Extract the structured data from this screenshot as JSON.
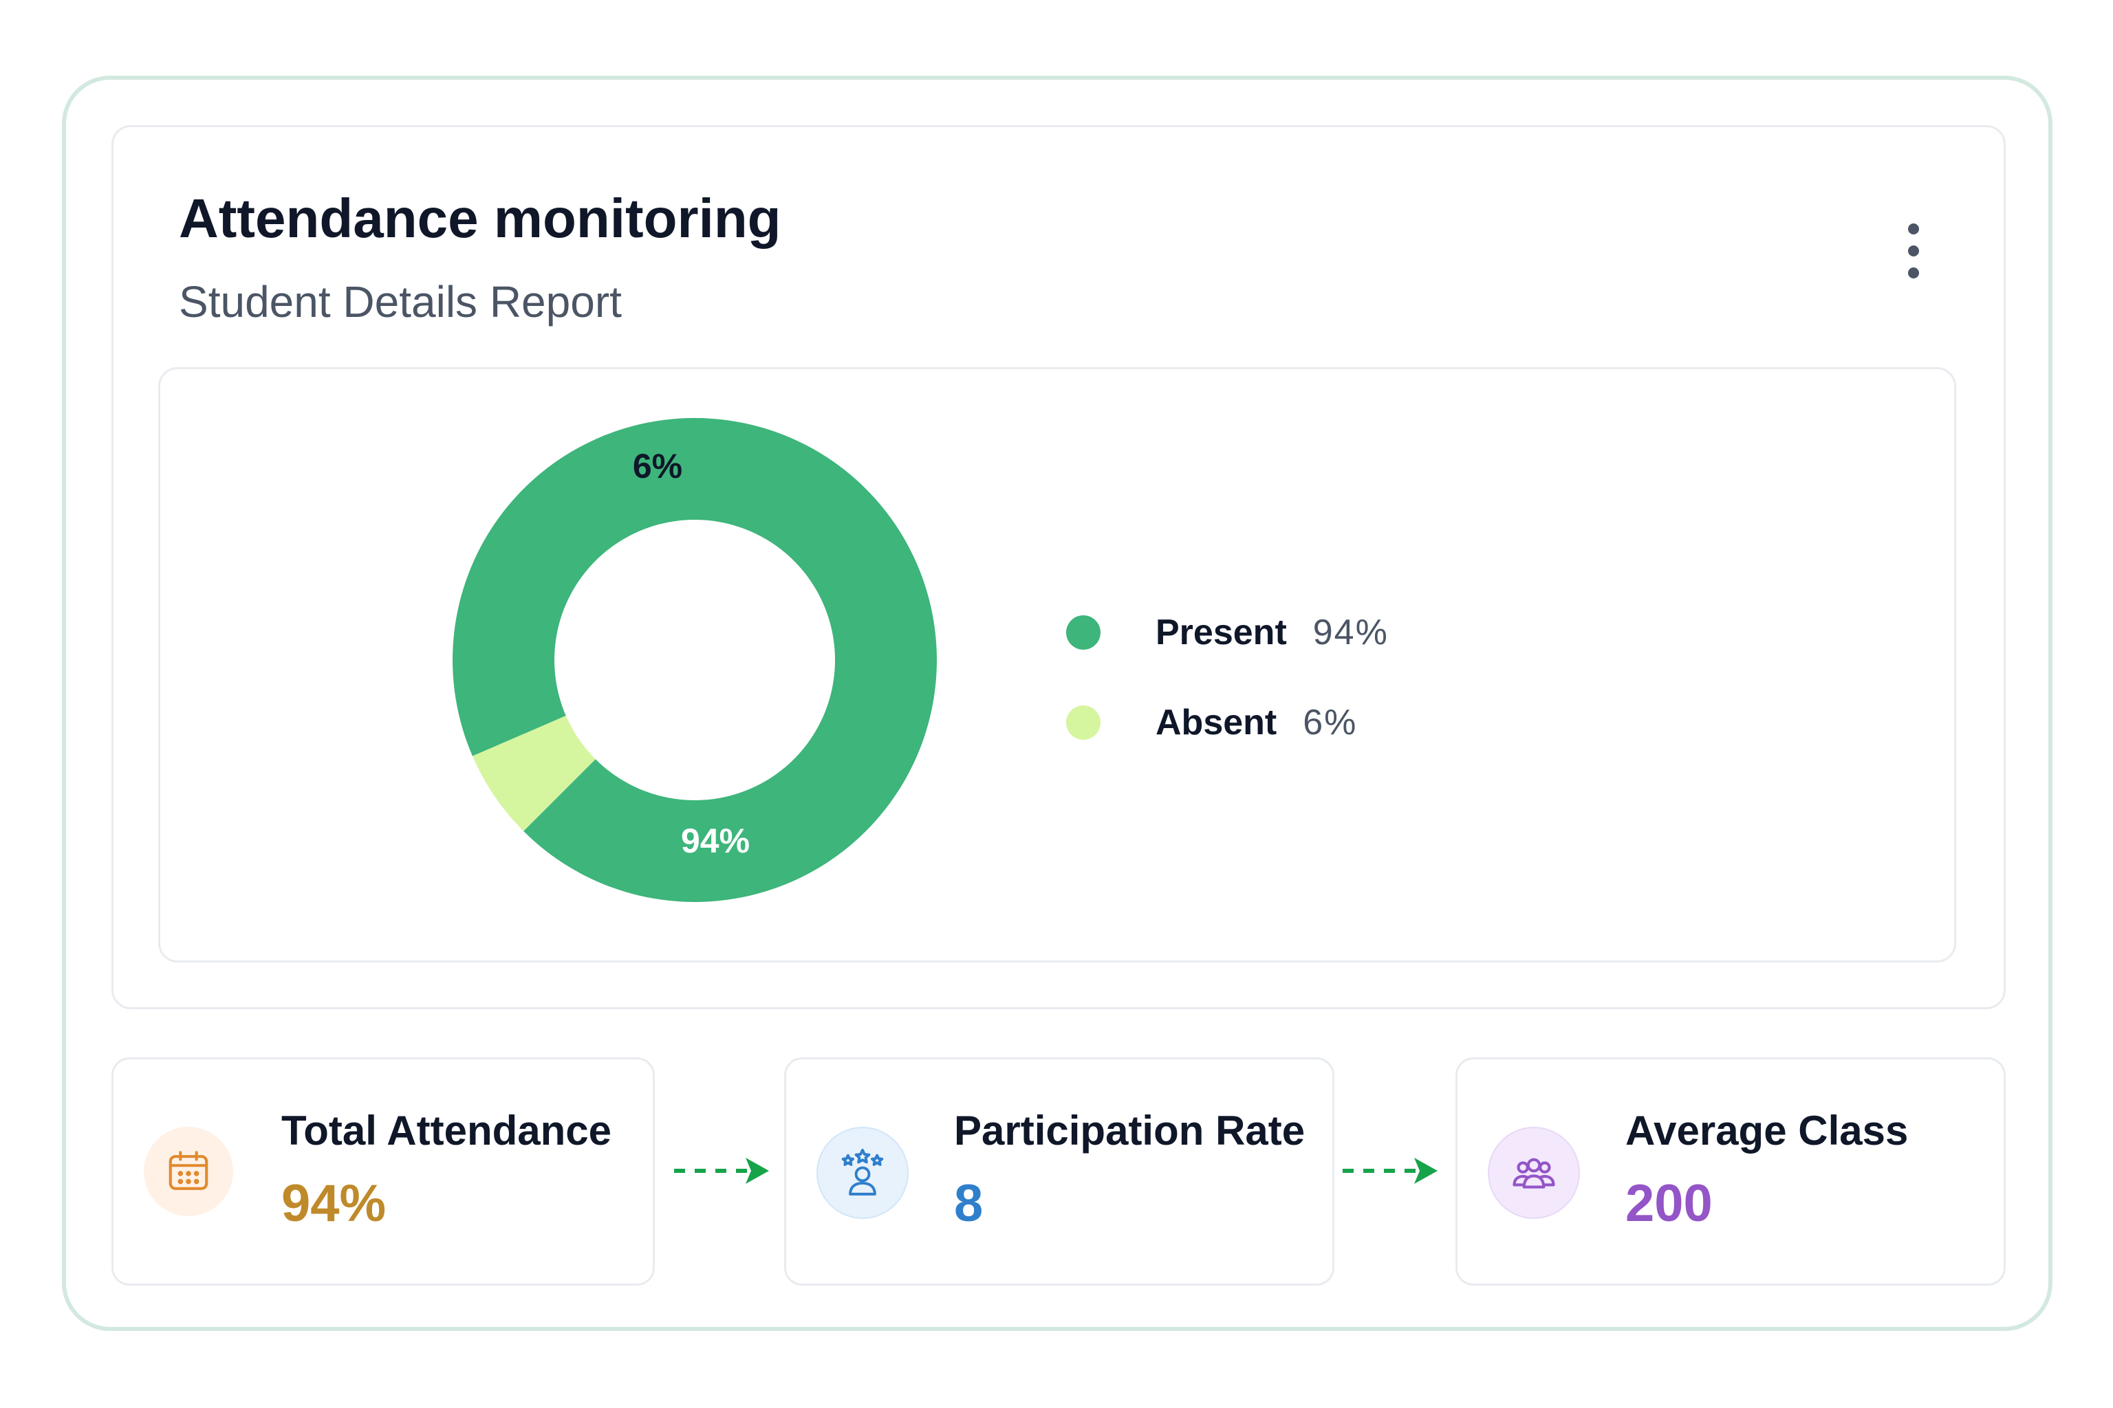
{
  "header": {
    "title": "Attendance monitoring",
    "subtitle": "Student Details Report"
  },
  "menu": {
    "icon": "more-vertical-icon"
  },
  "chart_data": {
    "type": "pie",
    "variant": "donut",
    "slices": [
      {
        "label": "Present",
        "value": 94,
        "display": "94%",
        "color": "#3db57b"
      },
      {
        "label": "Absent",
        "value": 6,
        "display": "6%",
        "color": "#d6f59f"
      }
    ],
    "legend_placement": "right"
  },
  "legend": [
    {
      "label": "Present",
      "value": "94%",
      "color": "#3db57b"
    },
    {
      "label": "Absent",
      "value": "6%",
      "color": "#d6f59f"
    }
  ],
  "stats": [
    {
      "label": "Total Attendance",
      "value": "94%",
      "icon": "calendar-icon",
      "color": "#bf8a2a",
      "bg": "#fff1e6"
    },
    {
      "label": "Participation Rate",
      "value": "8",
      "icon": "user-stars-icon",
      "color": "#2f7fcb",
      "bg": "#e7f2fd"
    },
    {
      "label": "Average Class",
      "value": "200",
      "icon": "users-group-icon",
      "color": "#9355c7",
      "bg": "#f3e8fc"
    }
  ],
  "colors": {
    "arrow": "#16a34a",
    "outer_border": "#d3e9df"
  }
}
